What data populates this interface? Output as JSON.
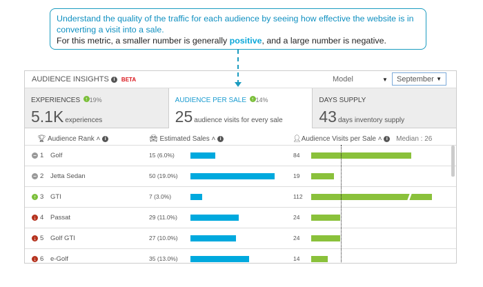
{
  "callout": {
    "line1": "Understand the quality of the traffic for each audience by seeing how effective the website is in converting a visit into a sale.",
    "line2_pre": "For this metric, a smaller number is generally ",
    "line2_bold": "positive",
    "line2_post": ", and a large number is negative."
  },
  "header": {
    "title": "AUDIENCE INSIGHTS",
    "badge": "BETA",
    "model_label": "Model",
    "month": "September"
  },
  "tabs": [
    {
      "label": "EXPERIENCES",
      "change": "19%",
      "value": "5.1K",
      "unit": "experiences"
    },
    {
      "label": "AUDIENCE PER SALE",
      "change": "14%",
      "value": "25",
      "unit": "audience visits for every sale"
    },
    {
      "label": "DAYS SUPPLY",
      "change": "",
      "value": "43",
      "unit": "days inventory supply"
    }
  ],
  "columns": {
    "rank": "Audience Rank",
    "sales": "Estimated Sales",
    "visits": "Audience Visits per Sale",
    "median": "Median : 26"
  },
  "colors": {
    "sales": "#00a9de",
    "visits": "#8ac13b",
    "up": "#7bbf3a",
    "down": "#b5321e",
    "same": "#999999"
  },
  "rows": [
    {
      "rank": "1",
      "name": "Golf",
      "trend": "same",
      "sales_text": "15 (6.0%)",
      "sales": 15,
      "visits_text": "84",
      "visits": 84
    },
    {
      "rank": "2",
      "name": "Jetta Sedan",
      "trend": "same",
      "sales_text": "50 (19.0%)",
      "sales": 50,
      "visits_text": "19",
      "visits": 19
    },
    {
      "rank": "3",
      "name": "GTI",
      "trend": "up",
      "sales_text": "7 (3.0%)",
      "sales": 7,
      "visits_text": "112",
      "visits": 112
    },
    {
      "rank": "4",
      "name": "Passat",
      "trend": "down",
      "sales_text": "29 (11.0%)",
      "sales": 29,
      "visits_text": "24",
      "visits": 24
    },
    {
      "rank": "5",
      "name": "Golf GTI",
      "trend": "down",
      "sales_text": "27 (10.0%)",
      "sales": 27,
      "visits_text": "24",
      "visits": 24
    },
    {
      "rank": "6",
      "name": "e-Golf",
      "trend": "down",
      "sales_text": "35 (13.0%)",
      "sales": 35,
      "visits_text": "14",
      "visits": 14
    }
  ]
}
